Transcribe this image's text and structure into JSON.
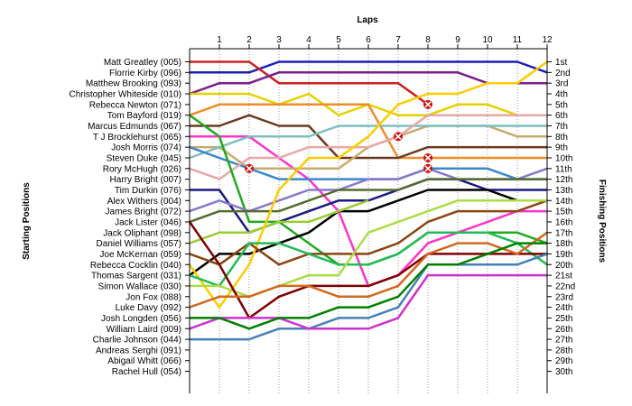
{
  "chart_data": {
    "type": "line",
    "title": "Laps",
    "ylabel_left": "Starting Positions",
    "ylabel_right": "Finishing Positions",
    "x": [
      0,
      1,
      2,
      3,
      4,
      5,
      6,
      7,
      8,
      9,
      10,
      11,
      12
    ],
    "x_ticks": [
      "1",
      "2",
      "3",
      "4",
      "5",
      "6",
      "7",
      "8",
      "9",
      "10",
      "11",
      "12"
    ],
    "ylim": [
      1,
      30
    ],
    "invert_y": true,
    "grid_x": true,
    "starting_labels": [
      "Matt Greatley (005)",
      "Florrie Kirby (096)",
      "Matthew Brooking (093)",
      "Christopher Whiteside (010)",
      "Rebecca Newton (071)",
      "Tom Bayford (019)",
      "Marcus Edmunds (067)",
      "T J Brocklehurst (065)",
      "Josh Morris (074)",
      "Steven Duke (045)",
      "Rory McHugh (026)",
      "Harry Bright (007)",
      "Tim Durkin (076)",
      "Alex Withers (004)",
      "James Bright (072)",
      "Jack Lister (046)",
      "Jack Oliphant (098)",
      "Daniel Williams (057)",
      "Joe McKernan (059)",
      "Rebecca Cocklin (040)",
      "Thomas Sargent (031)",
      "Simon Wallace (030)",
      "Jon Fox (088)",
      "Luke Davy (092)",
      "Josh Longden (056)",
      "William Laird (009)",
      "Charlie Johnson (044)",
      "Andreas Serghi (091)",
      "Abigail Whitt (066)",
      "Rachel Hull (054)"
    ],
    "finishing_labels": [
      "1st",
      "2nd",
      "3rd",
      "4th",
      "5th",
      "6th",
      "7th",
      "8th",
      "9th",
      "10th",
      "11th",
      "12th",
      "13th",
      "14th",
      "15th",
      "16th",
      "17th",
      "18th",
      "19th",
      "20th",
      "21st",
      "22nd",
      "23rd",
      "24th",
      "25th",
      "26th",
      "27th",
      "28th",
      "29th",
      "30th"
    ],
    "series": [
      {
        "color": "#1f1fb4",
        "positions": [
          2,
          2,
          2,
          1,
          1,
          1,
          1,
          1,
          1,
          1,
          1,
          1,
          2
        ]
      },
      {
        "color": "#cc2222",
        "positions": [
          1,
          1,
          1,
          3,
          3,
          3,
          3,
          3,
          5
        ]
      },
      {
        "color": "#7a1f8c",
        "positions": [
          4,
          3,
          3,
          2,
          2,
          2,
          2,
          2,
          2,
          2,
          3,
          3,
          3
        ]
      },
      {
        "color": "#e6d200",
        "positions": [
          4,
          4,
          4,
          5,
          4,
          6,
          5,
          6,
          6,
          5,
          5,
          6,
          6
        ]
      },
      {
        "color": "#f08c2a",
        "positions": [
          6,
          5,
          5,
          5,
          5,
          5,
          5,
          10,
          10,
          10,
          10,
          10,
          10
        ]
      },
      {
        "color": "#6b3a1f",
        "positions": [
          7,
          7,
          6,
          7,
          7,
          10,
          10,
          10,
          9,
          9,
          9,
          9,
          9
        ]
      },
      {
        "color": "#ff33cc",
        "positions": [
          8,
          8,
          8,
          10,
          12,
          15,
          22,
          21,
          18,
          17,
          16,
          15,
          15
        ]
      },
      {
        "color": "#c8aa6e",
        "positions": [
          9,
          9,
          11,
          11,
          11,
          11,
          9,
          8,
          7,
          7,
          7,
          8,
          8
        ]
      },
      {
        "color": "#7fbfbf",
        "positions": [
          10,
          9,
          8,
          8,
          8,
          7,
          7,
          7,
          7,
          7,
          7,
          7,
          7
        ]
      },
      {
        "color": "#3a88cc",
        "positions": [
          9,
          10,
          11,
          12,
          12,
          12,
          12,
          12,
          11,
          11,
          11,
          12,
          12
        ]
      },
      {
        "color": "#e8a8a8",
        "positions": [
          11,
          12,
          10,
          10,
          9,
          9,
          9,
          8,
          6,
          6,
          6,
          6,
          6
        ]
      },
      {
        "color": "#1a1a80",
        "positions": [
          13,
          13,
          17,
          16,
          15,
          14,
          14,
          13,
          12,
          12,
          13,
          13,
          13
        ]
      },
      {
        "color": "#22aa22",
        "positions": [
          6,
          8,
          16,
          16,
          18,
          20,
          20,
          19,
          17,
          17,
          17,
          17,
          18
        ]
      },
      {
        "color": "#000000",
        "positions": [
          21,
          19,
          19,
          18,
          17,
          15,
          15,
          14,
          13,
          13,
          13,
          14,
          14
        ]
      },
      {
        "color": "#8877cc",
        "positions": [
          15,
          14,
          15,
          14,
          13,
          13,
          12,
          12,
          11,
          12,
          12,
          12,
          11
        ]
      },
      {
        "color": "#556b2f",
        "positions": [
          16,
          15,
          15,
          15,
          14,
          13,
          13,
          13,
          12,
          12,
          12,
          12,
          12
        ]
      },
      {
        "color": "#9acd32",
        "positions": [
          18,
          17,
          17,
          16,
          16,
          15,
          14
        ]
      },
      {
        "color": "#ffcc00",
        "positions": [
          20,
          24,
          20,
          13,
          10,
          10,
          8,
          5,
          4,
          4,
          3,
          3,
          1
        ]
      },
      {
        "color": "#8b4513",
        "positions": [
          19,
          20,
          18,
          20,
          19,
          19,
          19,
          18,
          16,
          15,
          15,
          15,
          14
        ]
      },
      {
        "color": "#22bb55",
        "positions": [
          21,
          22,
          18,
          18,
          19,
          20,
          20,
          19,
          17,
          17,
          17,
          18,
          20
        ]
      },
      {
        "color": "#aadd44",
        "positions": [
          22,
          22,
          23,
          22,
          21,
          21,
          17,
          16,
          15,
          14,
          14,
          14,
          14
        ]
      },
      {
        "color": "#800000",
        "positions": [
          16,
          20,
          25,
          23,
          22,
          22,
          22,
          21,
          19,
          19,
          19,
          19,
          19
        ]
      },
      {
        "color": "#d2691e",
        "positions": [
          24,
          23,
          23,
          22,
          22,
          23,
          23,
          22,
          19,
          18,
          18,
          19,
          17
        ]
      },
      {
        "color": "#4682b4",
        "positions": [
          27,
          27,
          27,
          26,
          26,
          25,
          25,
          24,
          20,
          20,
          20,
          20,
          19
        ]
      },
      {
        "color": "#cc33cc",
        "positions": [
          26,
          25,
          25,
          25,
          26,
          26,
          26,
          25,
          21,
          21,
          21,
          21,
          21
        ]
      },
      {
        "color": "#008000",
        "positions": [
          25,
          25,
          26,
          25,
          25,
          24,
          24,
          23,
          20,
          20,
          19,
          18,
          18
        ]
      }
    ],
    "markers": [
      {
        "lap": 2,
        "position": 11,
        "label": "x"
      },
      {
        "lap": 7,
        "position": 8,
        "label": "x"
      },
      {
        "lap": 8,
        "position": 5,
        "label": "x"
      },
      {
        "lap": 8,
        "position": 10,
        "label": "x"
      },
      {
        "lap": 8,
        "position": 11,
        "label": "x"
      }
    ]
  }
}
